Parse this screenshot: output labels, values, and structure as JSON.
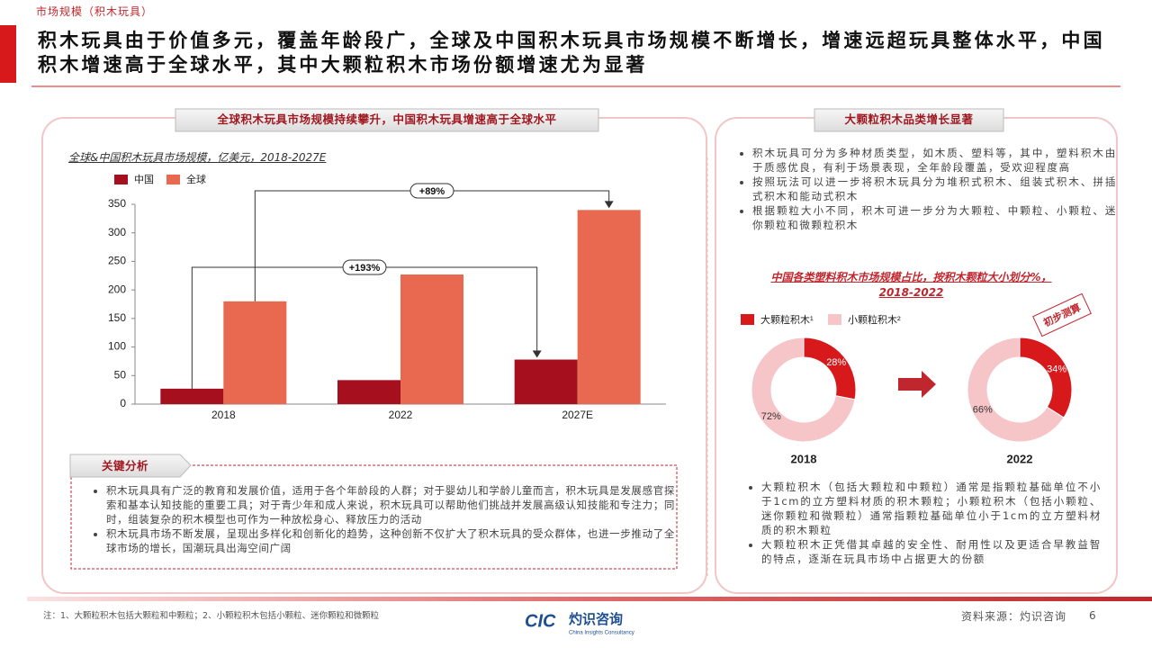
{
  "header": {
    "section": "市场规模（积木玩具）",
    "title": "积木玩具由于价值多元，覆盖年龄段广，全球及中国积木玩具市场规模不断增长，增速远超玩具整体水平，中国积木增速高于全球水平，其中大颗粒积木市场份额增速尤为显著"
  },
  "left_panel": {
    "heading": "全球积木玩具市场规模持续攀升，中国积木玩具增速高于全球水平",
    "analysis_heading": "关键分析",
    "analysis_bullets": [
      "积木玩具具有广泛的教育和发展价值，适用于各个年龄段的人群；对于婴幼儿和学龄儿童而言，积木玩具是发展感官探索和基本认知技能的重要工具；对于青少年和成人来说，积木玩具可以帮助他们挑战并发展高级认知技能和专注力；同时，组装复杂的积木模型也可作为一种放松身心、释放压力的活动",
      "积木玩具市场不断发展，呈现出多样化和创新化的趋势，这种创新不仅扩大了积木玩具的受众群体，也进一步推动了全球市场的增长，国潮玩具出海空间广阔"
    ]
  },
  "right_panel": {
    "heading": "大颗粒积木品类增长显著",
    "bullets": [
      "积木玩具可分为多种材质类型，如木质、塑料等，其中，塑料积木由于质感优良，有利于场景表现，全年龄段覆盖，受欢迎程度高",
      "按照玩法可以进一步将积木玩具分为堆积式积木、组装式积木、拼插式积木和能动式积木",
      "根据颗粒大小不同，积木可进一步分为大颗粒、中颗粒、小颗粒、迷你颗粒和微颗粒积木"
    ],
    "stamp": "初步测算",
    "bottom_bullets": [
      "大颗粒积木（包括大颗粒和中颗粒）通常是指颗粒基础单位不小于1cm的立方塑料材质的积木颗粒；小颗粒积木（包括小颗粒、迷你颗粒和微颗粒）通常指颗粒基础单位小于1cm的立方塑料材质的积木颗粒",
      "大颗粒积木正凭借其卓越的安全性、耐用性以及更适合早教益智的特点，逐渐在玩具市场中占据更大的份额"
    ]
  },
  "chart_data": [
    {
      "type": "bar",
      "title": "全球&中国积木玩具市场规模，亿美元，2018-2027E",
      "categories": [
        "2018",
        "2022",
        "2027E"
      ],
      "series": [
        {
          "name": "中国",
          "color": "#a50f1e",
          "values": [
            27,
            42,
            78
          ]
        },
        {
          "name": "全球",
          "color": "#e8694f",
          "values": [
            180,
            227,
            340
          ]
        }
      ],
      "ylim": [
        0,
        350
      ],
      "yticks": [
        0,
        50,
        100,
        150,
        200,
        250,
        300,
        350
      ],
      "annotations": [
        "+193%",
        "+89%"
      ]
    },
    {
      "type": "donut",
      "title": "中国各类塑料积木市场规模占比，按积木颗粒大小划分%，2018-2022",
      "categories": [
        "大颗粒积木¹",
        "小颗粒积木²"
      ],
      "colors": [
        "#d7191c",
        "#f6c5c8"
      ],
      "series": [
        {
          "name": "2018",
          "values": [
            28,
            72
          ],
          "value_labels": [
            "28%",
            "72%"
          ]
        },
        {
          "name": "2022",
          "values": [
            34,
            66
          ],
          "value_labels": [
            "34%",
            "66%"
          ]
        }
      ]
    }
  ],
  "footer": {
    "note": "注：1、大颗粒积木包括大颗粒和中颗粒；2、小颗粒积木包括小颗粒、迷你颗粒和微颗粒",
    "logo": "CIC",
    "logo_text": "灼识咨询",
    "logo_sub": "China Insights Consultancy",
    "source": "资料来源：灼识咨询",
    "page": 6
  }
}
